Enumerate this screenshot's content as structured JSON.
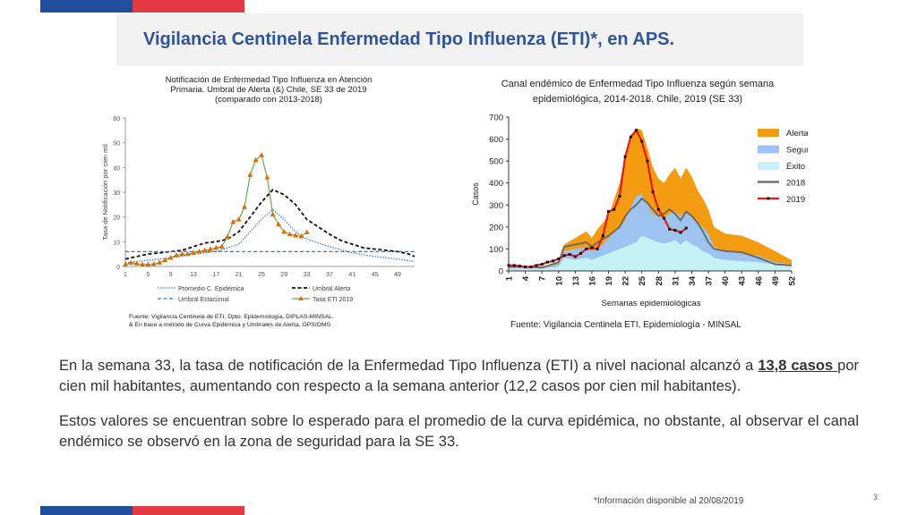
{
  "slide": {
    "title": "Vigilancia Centinela Enfermedad Tipo Influenza (ETI)*, en APS.",
    "paragraph1_before": "En la semana 33, la tasa de notificación de la Enfermedad Tipo Influenza (ETI) a nivel nacional alcanzó a ",
    "paragraph1_highlight": "13,8 casos ",
    "paragraph1_after": "por cien mil habitantes, aumentando  con respecto a la semana anterior (12,2 casos por cien mil habitantes).",
    "paragraph2": "Estos valores se encuentran sobre lo esperado para el promedio de la curva epidémica, no obstante, al observar el canal endémico se observó en la zona de seguridad para la SE 33.",
    "footnote": "*Información disponible al 20/08/2019",
    "page_number": "3",
    "colors": {
      "title": "#2f5597",
      "flag_blue": "#1f4e9c",
      "flag_red": "#e63946"
    }
  },
  "chart_data": [
    {
      "type": "line",
      "title_lines": [
        "Notificación de Enfermedad Tipo Influenza en Atención",
        "Primaria. Umbral de Alerta (&) Chile, SE 33 de 2019",
        "(comparado con 2013-2018)"
      ],
      "ylabel": "Tasa de Notificación por cien mil",
      "xlabel": "",
      "x_ticks": [
        "1",
        "5",
        "9",
        "13",
        "17",
        "21",
        "25",
        "29",
        "33",
        "37",
        "41",
        "45",
        "49"
      ],
      "y_ticks": [
        "0",
        "10",
        "20",
        "30",
        "40",
        "50",
        "60"
      ],
      "xlim": [
        1,
        52
      ],
      "ylim": [
        0,
        60
      ],
      "grid": false,
      "legend_position": "bottom",
      "series": [
        {
          "name": "Promedio  C. Epidémica",
          "style": "dotted",
          "color": "#3a78c2",
          "x": [
            1,
            5,
            9,
            13,
            17,
            21,
            23,
            25,
            27,
            29,
            31,
            33,
            37,
            41,
            45,
            49,
            52
          ],
          "values": [
            1.5,
            2.5,
            3.5,
            5,
            6,
            9,
            14,
            19,
            23,
            19,
            14,
            11,
            8,
            5.5,
            4,
            3,
            2
          ]
        },
        {
          "name": "Umbral Alerta",
          "style": "dashed",
          "color": "#111111",
          "x": [
            1,
            3,
            5,
            7,
            9,
            11,
            13,
            15,
            17,
            19,
            21,
            23,
            25,
            27,
            29,
            31,
            33,
            35,
            37,
            39,
            41,
            43,
            45,
            47,
            49,
            51,
            52
          ],
          "values": [
            3,
            4,
            5,
            5.5,
            6,
            6.5,
            8,
            9.5,
            10,
            11,
            14,
            20,
            26,
            31,
            29,
            25,
            19,
            16,
            13,
            10.5,
            9,
            7.5,
            7,
            6.5,
            6,
            5,
            4
          ]
        },
        {
          "name": "Umbral Estacional",
          "style": "dashed",
          "color": "#3a78c2",
          "x": [
            1,
            52
          ],
          "values": [
            6,
            6
          ]
        },
        {
          "name": "Tasa ETI  2019",
          "style": "solid-marker",
          "color": "#6aa84f",
          "marker_color": "#e06c00",
          "x": [
            1,
            2,
            3,
            4,
            5,
            6,
            7,
            8,
            9,
            10,
            11,
            12,
            13,
            14,
            15,
            16,
            17,
            18,
            19,
            20,
            21,
            22,
            23,
            24,
            25,
            26,
            27,
            28,
            29,
            30,
            31,
            32,
            33
          ],
          "values": [
            0.8,
            1.5,
            1.2,
            0.8,
            0.8,
            1,
            1.5,
            2.5,
            3.5,
            4.5,
            5,
            5,
            5.5,
            6,
            6.5,
            7,
            7.5,
            8,
            12,
            18,
            19,
            24,
            37,
            43,
            45,
            36,
            21,
            17,
            14,
            13,
            12.5,
            12.2,
            13.8
          ]
        }
      ],
      "source_lines": [
        "Fuente: Vigilancia Centinela de ETI. Dpto. Epidemiología, DIPLAS-MINSAL.",
        "& En base a método de Curva Epidémica y Umbrales de Alerta, OPS/OMS"
      ]
    },
    {
      "type": "area",
      "title_lines": [
        "Canal  endémico de Enfermedad Tipo Influenza según semana",
        "epidemiológica, 2014-2018. Chile, 2019  (SE 33)"
      ],
      "ylabel": "Casos",
      "xlabel": "Semanas epidemiológicas",
      "x_ticks": [
        "1",
        "4",
        "7",
        "10",
        "13",
        "16",
        "19",
        "22",
        "25",
        "28",
        "31",
        "34",
        "37",
        "40",
        "43",
        "46",
        "49",
        "52"
      ],
      "y_ticks": [
        "0",
        "100",
        "200",
        "300",
        "400",
        "500",
        "600",
        "700"
      ],
      "xlim": [
        1,
        52
      ],
      "ylim": [
        0,
        700
      ],
      "grid": false,
      "legend_position": "right",
      "series": [
        {
          "name": "Alerta",
          "color": "#f39c12",
          "x": [
            1,
            4,
            7,
            10,
            11,
            13,
            15,
            16,
            17,
            19,
            21,
            22,
            23,
            24,
            25,
            26,
            27,
            28,
            29,
            30,
            31,
            32,
            33,
            34,
            35,
            36,
            37,
            38,
            40,
            43,
            46,
            49,
            52
          ],
          "values": [
            20,
            20,
            20,
            40,
            120,
            150,
            180,
            150,
            190,
            250,
            400,
            520,
            600,
            650,
            640,
            560,
            470,
            420,
            400,
            440,
            470,
            420,
            470,
            430,
            370,
            330,
            280,
            200,
            170,
            160,
            130,
            90,
            50
          ]
        },
        {
          "name": "Seguridad",
          "color": "#9dc3f0",
          "x": [
            1,
            4,
            7,
            10,
            11,
            13,
            15,
            16,
            17,
            19,
            21,
            22,
            23,
            24,
            25,
            26,
            27,
            28,
            29,
            30,
            31,
            32,
            33,
            34,
            35,
            36,
            37,
            38,
            40,
            43,
            46,
            49,
            52
          ],
          "values": [
            15,
            15,
            15,
            30,
            90,
            100,
            110,
            90,
            100,
            150,
            200,
            230,
            290,
            340,
            350,
            300,
            260,
            250,
            240,
            260,
            270,
            250,
            270,
            250,
            220,
            200,
            170,
            110,
            90,
            80,
            70,
            40,
            30
          ]
        },
        {
          "name": "Éxito",
          "color": "#c5f2f5",
          "x": [
            1,
            4,
            7,
            10,
            11,
            13,
            15,
            16,
            17,
            19,
            21,
            22,
            23,
            24,
            25,
            26,
            27,
            28,
            29,
            30,
            31,
            32,
            33,
            34,
            35,
            36,
            37,
            38,
            40,
            43,
            46,
            49,
            52
          ],
          "values": [
            10,
            10,
            10,
            20,
            60,
            50,
            60,
            50,
            60,
            80,
            100,
            110,
            120,
            130,
            160,
            150,
            140,
            130,
            125,
            130,
            140,
            120,
            140,
            120,
            110,
            90,
            80,
            60,
            50,
            45,
            40,
            30,
            20
          ]
        },
        {
          "name": "2018",
          "color": "#666666",
          "x": [
            1,
            4,
            7,
            10,
            11,
            13,
            15,
            16,
            17,
            19,
            21,
            22,
            23,
            24,
            25,
            26,
            27,
            28,
            29,
            30,
            31,
            32,
            33,
            34,
            35,
            36,
            37,
            38,
            40,
            43,
            46,
            49,
            52
          ],
          "values": [
            20,
            20,
            15,
            40,
            110,
            120,
            130,
            110,
            130,
            160,
            200,
            250,
            280,
            300,
            330,
            310,
            280,
            250,
            260,
            280,
            260,
            230,
            270,
            250,
            220,
            180,
            130,
            100,
            90,
            85,
            60,
            30,
            25
          ]
        },
        {
          "name": "2019",
          "color": "#e31b1b",
          "marker_color": "#111111",
          "x": [
            1,
            2,
            3,
            4,
            5,
            6,
            7,
            8,
            9,
            10,
            11,
            12,
            13,
            14,
            15,
            16,
            17,
            18,
            19,
            20,
            21,
            22,
            23,
            24,
            25,
            26,
            27,
            28,
            29,
            30,
            31,
            32,
            33
          ],
          "values": [
            25,
            25,
            22,
            18,
            18,
            25,
            30,
            40,
            45,
            55,
            70,
            75,
            65,
            80,
            100,
            105,
            100,
            160,
            270,
            280,
            340,
            520,
            610,
            640,
            590,
            500,
            360,
            280,
            240,
            190,
            185,
            175,
            195
          ]
        }
      ],
      "source_lines": [
        "Fuente: Vigilancia Centinela ETI, Epidemiología  - MINSAL"
      ]
    }
  ]
}
